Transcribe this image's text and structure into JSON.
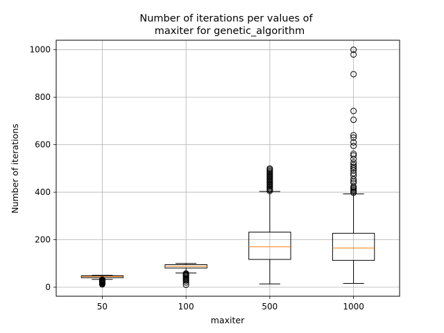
{
  "chart_data": {
    "type": "boxplot",
    "title": [
      "Number of iterations per values of",
      "maxiter for genetic_algorithm"
    ],
    "xlabel": "maxiter",
    "ylabel": "Number of iterations",
    "categories": [
      "50",
      "100",
      "500",
      "1000"
    ],
    "ylim": [
      -38,
      1040
    ],
    "yticks": [
      0,
      200,
      400,
      600,
      800,
      1000
    ],
    "grid": true,
    "colors": {
      "box": "#000000",
      "median": "#ff7f0e",
      "grid": "#b0b0b0"
    },
    "boxes": [
      {
        "category": "50",
        "whisker_low": 33,
        "q1": 40,
        "median": 45,
        "q3": 48,
        "whisker_high": 50,
        "outliers": [
          12,
          15,
          18,
          20,
          22,
          24,
          26,
          28,
          30,
          31,
          32
        ]
      },
      {
        "category": "100",
        "whisker_low": 60,
        "q1": 81,
        "median": 88,
        "q3": 95,
        "whisker_high": 100,
        "outliers": [
          10,
          20,
          28,
          32,
          36,
          40,
          44,
          48,
          52,
          55,
          58
        ]
      },
      {
        "category": "500",
        "whisker_low": 14,
        "q1": 117,
        "median": 170,
        "q3": 232,
        "whisker_high": 403,
        "outliers": [
          405,
          410,
          415,
          420,
          425,
          430,
          435,
          440,
          445,
          450,
          455,
          460,
          465,
          470,
          475,
          480,
          485,
          490,
          495,
          500
        ]
      },
      {
        "category": "1000",
        "whisker_low": 16,
        "q1": 113,
        "median": 165,
        "q3": 227,
        "whisker_high": 393,
        "outliers": [
          398,
          403,
          408,
          413,
          418,
          423,
          440,
          447,
          455,
          470,
          480,
          492,
          500,
          507,
          515,
          525,
          540,
          555,
          562,
          595,
          610,
          630,
          640,
          705,
          742,
          897,
          980,
          1000
        ]
      }
    ]
  }
}
